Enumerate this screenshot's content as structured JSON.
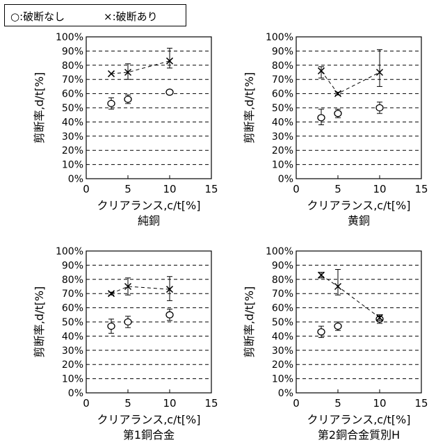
{
  "legend": {
    "no_break_label": "○:破断なし",
    "break_label": "×:破断あり"
  },
  "chart_data": [
    {
      "type": "scatter",
      "title": "純銅",
      "xlabel": "クリアランス,c/t[%]",
      "ylabel": "剪断率,d/t[%]",
      "xlim": [
        0,
        15
      ],
      "ylim": [
        0,
        100
      ],
      "xticks": [
        0,
        5,
        10,
        15
      ],
      "yticks": [
        "0%",
        "10%",
        "20%",
        "30%",
        "40%",
        "50%",
        "60%",
        "70%",
        "80%",
        "90%",
        "100%"
      ],
      "grid": "horizontal-dashed",
      "series": [
        {
          "marker": "circle",
          "x": [
            3,
            5,
            10
          ],
          "y": [
            53,
            56,
            61
          ],
          "err": [
            [
              4,
              4
            ],
            [
              3,
              3
            ],
            [
              1,
              1
            ]
          ],
          "connect": false
        },
        {
          "marker": "cross",
          "x": [
            3,
            5,
            10
          ],
          "y": [
            74,
            75,
            83
          ],
          "err": [
            [
              0,
              0
            ],
            [
              5,
              6
            ],
            [
              5,
              9
            ]
          ],
          "connect": true
        }
      ]
    },
    {
      "type": "scatter",
      "title": "黄銅",
      "xlabel": "クリアランス,c/t[%]",
      "ylabel": "剪断率,d/t[%]",
      "xlim": [
        0,
        15
      ],
      "ylim": [
        0,
        100
      ],
      "xticks": [
        0,
        5,
        10,
        15
      ],
      "yticks": [
        "0%",
        "10%",
        "20%",
        "30%",
        "40%",
        "50%",
        "60%",
        "70%",
        "80%",
        "90%",
        "100%"
      ],
      "grid": "horizontal-dashed",
      "series": [
        {
          "marker": "circle",
          "x": [
            3,
            5,
            10
          ],
          "y": [
            43,
            46,
            50
          ],
          "err": [
            [
              5,
              6
            ],
            [
              3,
              3
            ],
            [
              4,
              4
            ]
          ],
          "connect": false
        },
        {
          "marker": "cross",
          "x": [
            3,
            5,
            10
          ],
          "y": [
            76,
            60,
            75
          ],
          "err": [
            [
              5,
              3
            ],
            [
              1,
              1
            ],
            [
              10,
              16
            ]
          ],
          "connect": true
        }
      ]
    },
    {
      "type": "scatter",
      "title": "第1銅合金",
      "xlabel": "クリアランス,c/t[%]",
      "ylabel": "剪断率,d/t[%]",
      "xlim": [
        0,
        15
      ],
      "ylim": [
        0,
        100
      ],
      "xticks": [
        0,
        5,
        10,
        15
      ],
      "yticks": [
        "0%",
        "10%",
        "20%",
        "30%",
        "40%",
        "50%",
        "60%",
        "70%",
        "80%",
        "90%",
        "100%"
      ],
      "grid": "horizontal-dashed",
      "series": [
        {
          "marker": "circle",
          "x": [
            3,
            5,
            10
          ],
          "y": [
            47,
            50,
            55
          ],
          "err": [
            [
              5,
              5
            ],
            [
              4,
              4
            ],
            [
              4,
              4
            ]
          ],
          "connect": false
        },
        {
          "marker": "cross",
          "x": [
            3,
            5,
            10
          ],
          "y": [
            70,
            75,
            73
          ],
          "err": [
            [
              1,
              1
            ],
            [
              6,
              6
            ],
            [
              8,
              9
            ]
          ],
          "connect": true
        }
      ]
    },
    {
      "type": "scatter",
      "title": "第2銅合金質別H",
      "xlabel": "クリアランス,c/t[%]",
      "ylabel": "剪断率,d/t[%]",
      "xlim": [
        0,
        15
      ],
      "ylim": [
        0,
        100
      ],
      "xticks": [
        0,
        5,
        10,
        15
      ],
      "yticks": [
        "0%",
        "10%",
        "20%",
        "30%",
        "40%",
        "50%",
        "60%",
        "70%",
        "80%",
        "90%",
        "100%"
      ],
      "grid": "horizontal-dashed",
      "series": [
        {
          "marker": "circle",
          "x": [
            3,
            5,
            10
          ],
          "y": [
            43,
            47,
            52
          ],
          "err": [
            [
              4,
              4
            ],
            [
              3,
              3
            ],
            [
              3,
              3
            ]
          ],
          "connect": false
        },
        {
          "marker": "cross",
          "x": [
            3,
            5,
            10
          ],
          "y": [
            83,
            75,
            53
          ],
          "err": [
            [
              2,
              2
            ],
            [
              6,
              12
            ],
            [
              2,
              2
            ]
          ],
          "connect": true
        }
      ]
    }
  ]
}
